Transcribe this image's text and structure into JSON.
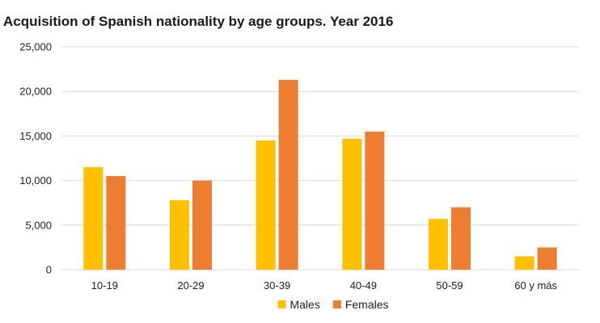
{
  "chart_data": {
    "type": "bar",
    "title": "Acquisition of Spanish nationality by age groups. Year 2016",
    "xlabel": "",
    "ylabel": "",
    "categories": [
      "10-19",
      "20-29",
      "30-39",
      "40-49",
      "50-59",
      "60 y más"
    ],
    "series": [
      {
        "name": "Males",
        "color": "#FFC000",
        "values": [
          11500,
          7800,
          14500,
          14700,
          5700,
          1500
        ]
      },
      {
        "name": "Females",
        "color": "#ED7D31",
        "values": [
          10500,
          10000,
          21300,
          15500,
          7000,
          2500
        ]
      }
    ],
    "ylim": [
      0,
      25000
    ],
    "yticks": [
      0,
      5000,
      10000,
      15000,
      20000,
      25000
    ],
    "ytick_labels": [
      "0",
      "5,000",
      "10,000",
      "15,000",
      "20,000",
      "25,000"
    ],
    "grid": true,
    "legend": "bottom"
  }
}
